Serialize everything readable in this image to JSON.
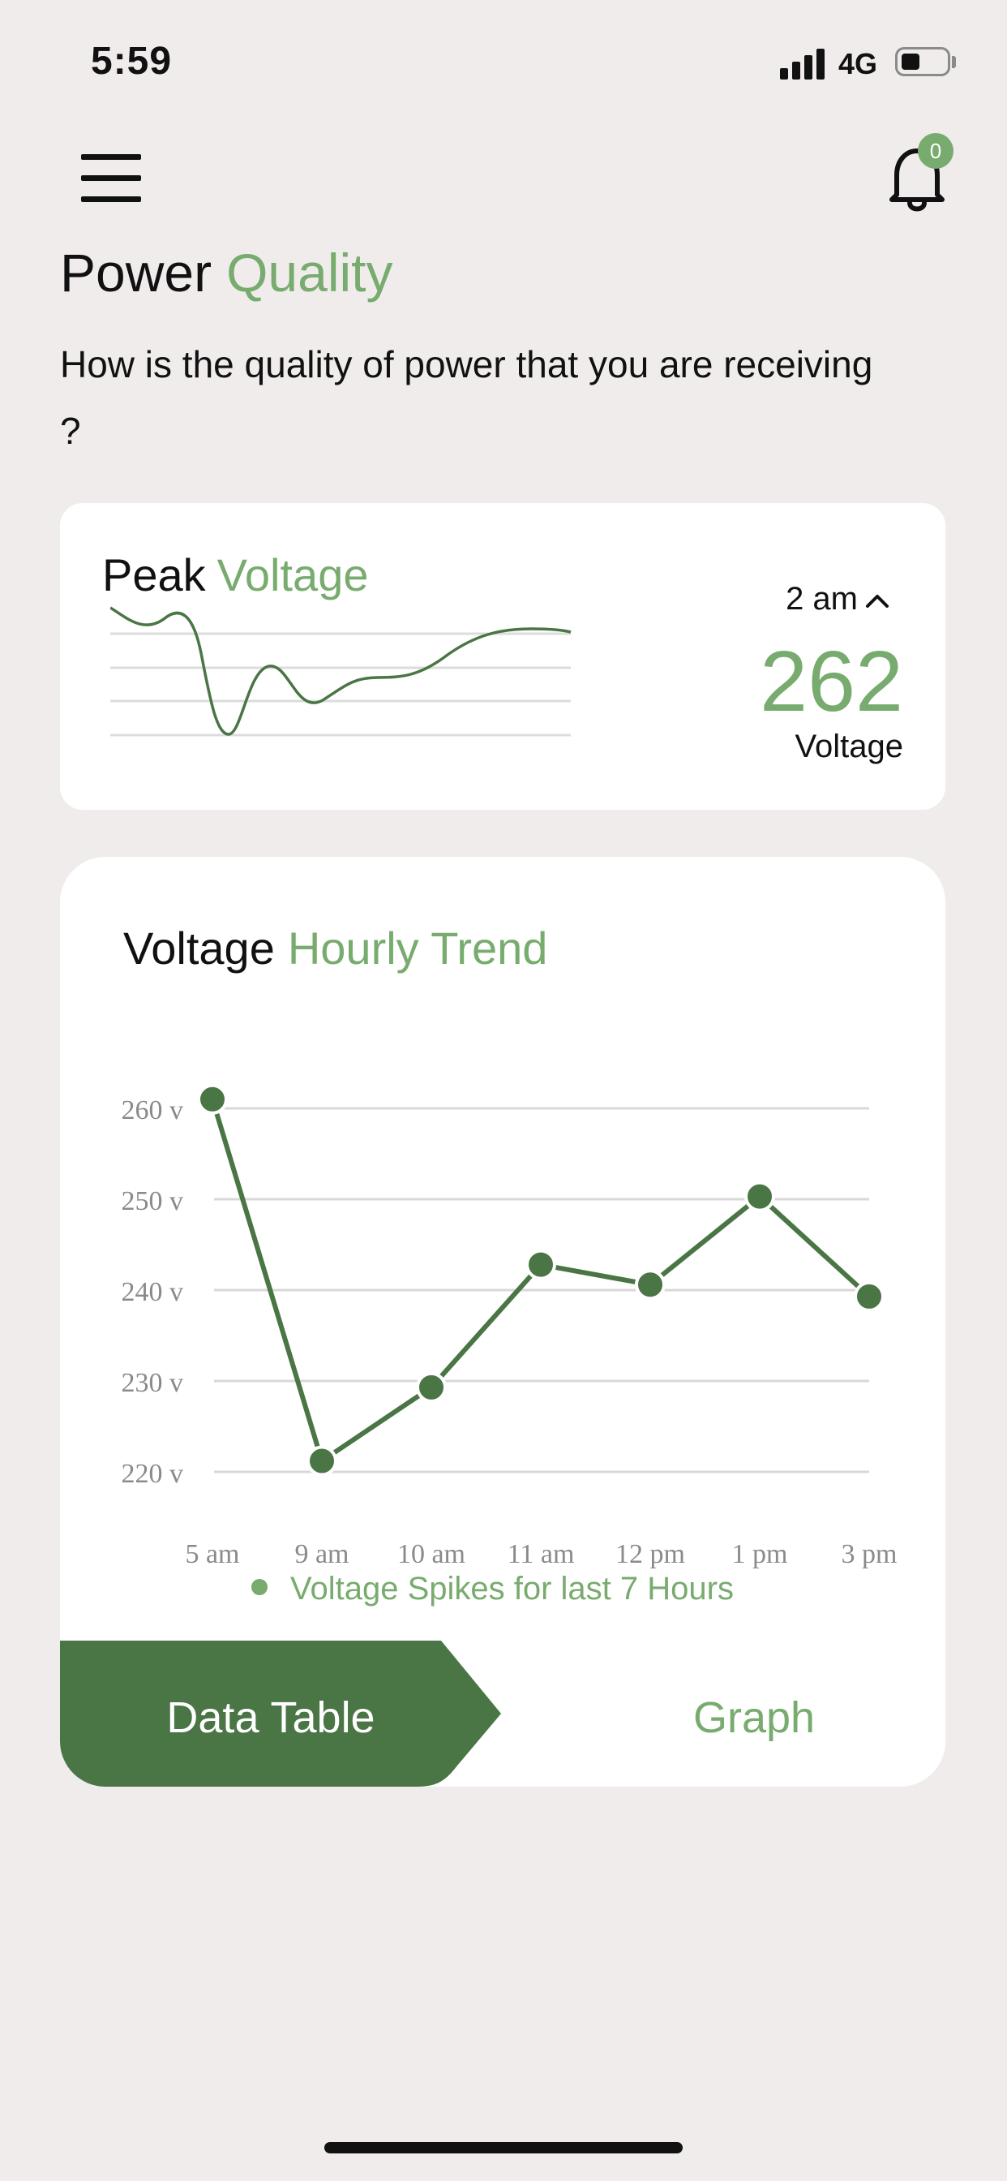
{
  "status_bar": {
    "time": "5:59",
    "network": "4G",
    "icons": [
      "signal-icon",
      "battery-icon"
    ]
  },
  "header": {
    "menu_icon": "hamburger-menu-icon",
    "bell_icon": "bell-icon",
    "notification_count": "0"
  },
  "page": {
    "title": "Power",
    "title_accent": "Quality",
    "subtitle": "How is the quality of power that you are receiving ?"
  },
  "peak_card": {
    "title": "Peak",
    "title_accent": "Voltage",
    "time": "2 am",
    "value": "262",
    "unit": "Voltage"
  },
  "trend_card": {
    "title": "Voltage",
    "title_accent": "Hourly Trend",
    "legend": "Voltage Spikes for last 7 Hours"
  },
  "tabs": {
    "data_table": "Data Table",
    "graph": "Graph"
  },
  "colors": {
    "accent": "#78ab6e",
    "series": "#4a7544",
    "background": "#f0ecec"
  },
  "chart_data": {
    "type": "line",
    "title": "",
    "categories": [
      "5 am",
      "9 am",
      "10 am",
      "11 am",
      "12 pm",
      "1 pm",
      "3 pm"
    ],
    "series": [
      {
        "name": "Voltage Spikes for last 7 Hours",
        "values": [
          261,
          221.2,
          229.3,
          242.8,
          240.6,
          250.3,
          239.3
        ]
      }
    ],
    "y_ticks": [
      "220 v",
      "230 v",
      "240 v",
      "250 v",
      "260 v"
    ],
    "y_tick_values": [
      220,
      230,
      240,
      250,
      260
    ],
    "ylim": [
      220,
      260
    ],
    "grid": true,
    "legend_position": "bottom"
  }
}
